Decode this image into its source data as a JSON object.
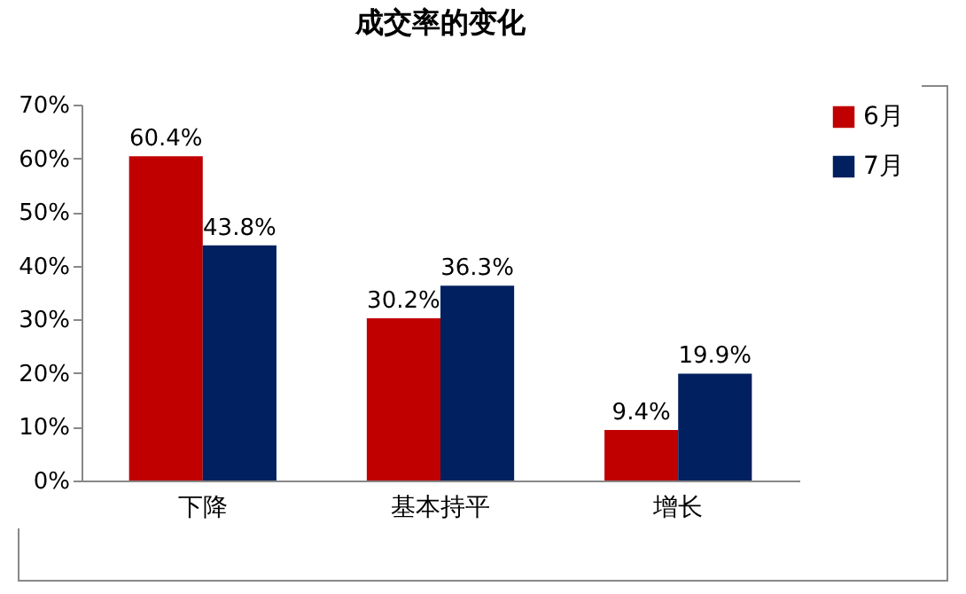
{
  "chart_data": {
    "type": "bar",
    "title": "成交率的变化",
    "categories": [
      "下降",
      "基本持平",
      "增长"
    ],
    "series": [
      {
        "name": "6月",
        "color": "#c00000",
        "values": [
          60.4,
          30.2,
          9.4
        ],
        "value_labels": [
          "60.4%",
          "30.2%",
          "9.4%"
        ]
      },
      {
        "name": "7月",
        "color": "#002060",
        "values": [
          43.8,
          36.3,
          19.9
        ],
        "value_labels": [
          "43.8%",
          "36.3%",
          "19.9%"
        ]
      }
    ],
    "ylim": [
      0,
      70
    ],
    "yticks": [
      {
        "value": 0,
        "label": "0%"
      },
      {
        "value": 10,
        "label": "10%"
      },
      {
        "value": 20,
        "label": "20%"
      },
      {
        "value": 30,
        "label": "30%"
      },
      {
        "value": 40,
        "label": "40%"
      },
      {
        "value": 50,
        "label": "50%"
      },
      {
        "value": 60,
        "label": "60%"
      },
      {
        "value": 70,
        "label": "70%"
      }
    ],
    "legend": "right"
  }
}
